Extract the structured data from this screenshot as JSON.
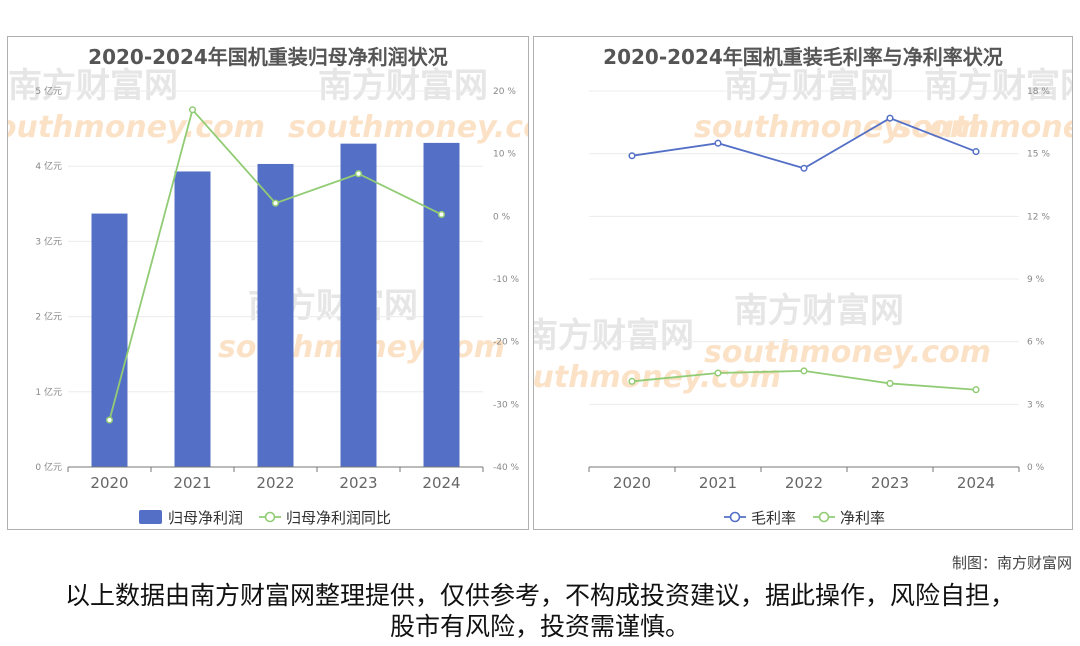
{
  "chart_data": [
    {
      "type": "bar",
      "title": "2020-2024年国机重装归母净利润状况",
      "categories": [
        "2020",
        "2021",
        "2022",
        "2023",
        "2024"
      ],
      "series": [
        {
          "name": "归母净利润",
          "type": "bar",
          "axis": "left",
          "color": "#5470c6",
          "values": [
            3.37,
            3.93,
            4.03,
            4.3,
            4.31
          ]
        },
        {
          "name": "归母净利润同比",
          "type": "line",
          "axis": "right",
          "color": "#91cc75",
          "values": [
            -32.5,
            17.0,
            2.1,
            6.8,
            0.3
          ]
        }
      ],
      "y_left": {
        "ylim": [
          0,
          5
        ],
        "ticks": [
          "0 亿元",
          "1 亿元",
          "2 亿元",
          "3 亿元",
          "4 亿元",
          "5 亿元"
        ]
      },
      "y_right": {
        "ylim": [
          -40,
          20
        ],
        "ticks": [
          "-40 %",
          "-30 %",
          "-20 %",
          "-10 %",
          "0 %",
          "10 %",
          "20 %"
        ]
      },
      "legend": "bottom",
      "grid": true
    },
    {
      "type": "line",
      "title": "2020-2024年国机重装毛利率与净利率状况",
      "categories": [
        "2020",
        "2021",
        "2022",
        "2023",
        "2024"
      ],
      "series": [
        {
          "name": "毛利率",
          "color": "#5470c6",
          "values": [
            14.9,
            15.5,
            14.3,
            16.7,
            15.1
          ]
        },
        {
          "name": "净利率",
          "color": "#91cc75",
          "values": [
            4.1,
            4.5,
            4.6,
            4.0,
            3.7
          ]
        }
      ],
      "y_right": {
        "ylim": [
          0,
          18
        ],
        "ticks": [
          "0 %",
          "3 %",
          "6 %",
          "9 %",
          "12 %",
          "15 %",
          "18 %"
        ]
      },
      "legend": "bottom",
      "grid": true
    }
  ],
  "watermark": {
    "cn": "南方财富网",
    "en": "southmoney.com"
  },
  "footer": {
    "credit": "制图：南方财富网",
    "disclaimer": "以上数据由南方财富网整理提供，仅供参考，不构成投资建议，据此操作，风险自担，股市有风险，投资需谨慎。"
  }
}
